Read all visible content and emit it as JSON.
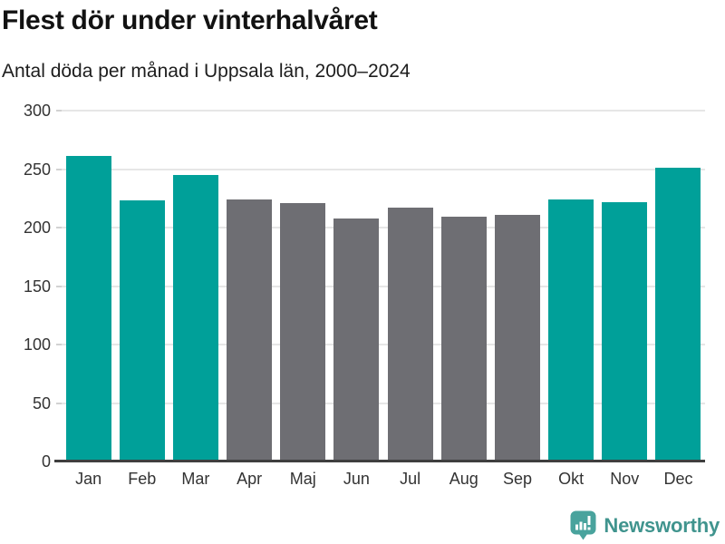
{
  "header": {
    "title": "Flest dör under vinterhalvåret",
    "subtitle": "Antal döda per månad i Uppsala län, 2000–2024"
  },
  "chart_data": {
    "type": "bar",
    "title": "Flest dör under vinterhalvåret",
    "subtitle": "Antal döda per månad i Uppsala län, 2000–2024",
    "categories": [
      "Jan",
      "Feb",
      "Mar",
      "Apr",
      "Maj",
      "Jun",
      "Jul",
      "Aug",
      "Sep",
      "Okt",
      "Nov",
      "Dec"
    ],
    "values": [
      261,
      223,
      245,
      224,
      221,
      208,
      217,
      209,
      211,
      224,
      222,
      251
    ],
    "highlighted": [
      true,
      true,
      true,
      false,
      false,
      false,
      false,
      false,
      false,
      true,
      true,
      true
    ],
    "highlight_color": "#00a099",
    "base_color": "#6e6e73",
    "xlabel": "",
    "ylabel": "",
    "ylim": [
      0,
      300
    ],
    "yticks": [
      0,
      50,
      100,
      150,
      200,
      250,
      300
    ],
    "grid": true,
    "legend_position": "none"
  },
  "footer": {
    "brand": "Newsworthy",
    "logo_icon": "bar-chart-speech-bubble-icon",
    "logo_color": "#49a39d"
  },
  "colors": {
    "background": "#ffffff",
    "gridline": "#e6e6e6",
    "axis_line": "#3f3f3f",
    "axis_text": "#333333",
    "title_text": "#121212"
  }
}
